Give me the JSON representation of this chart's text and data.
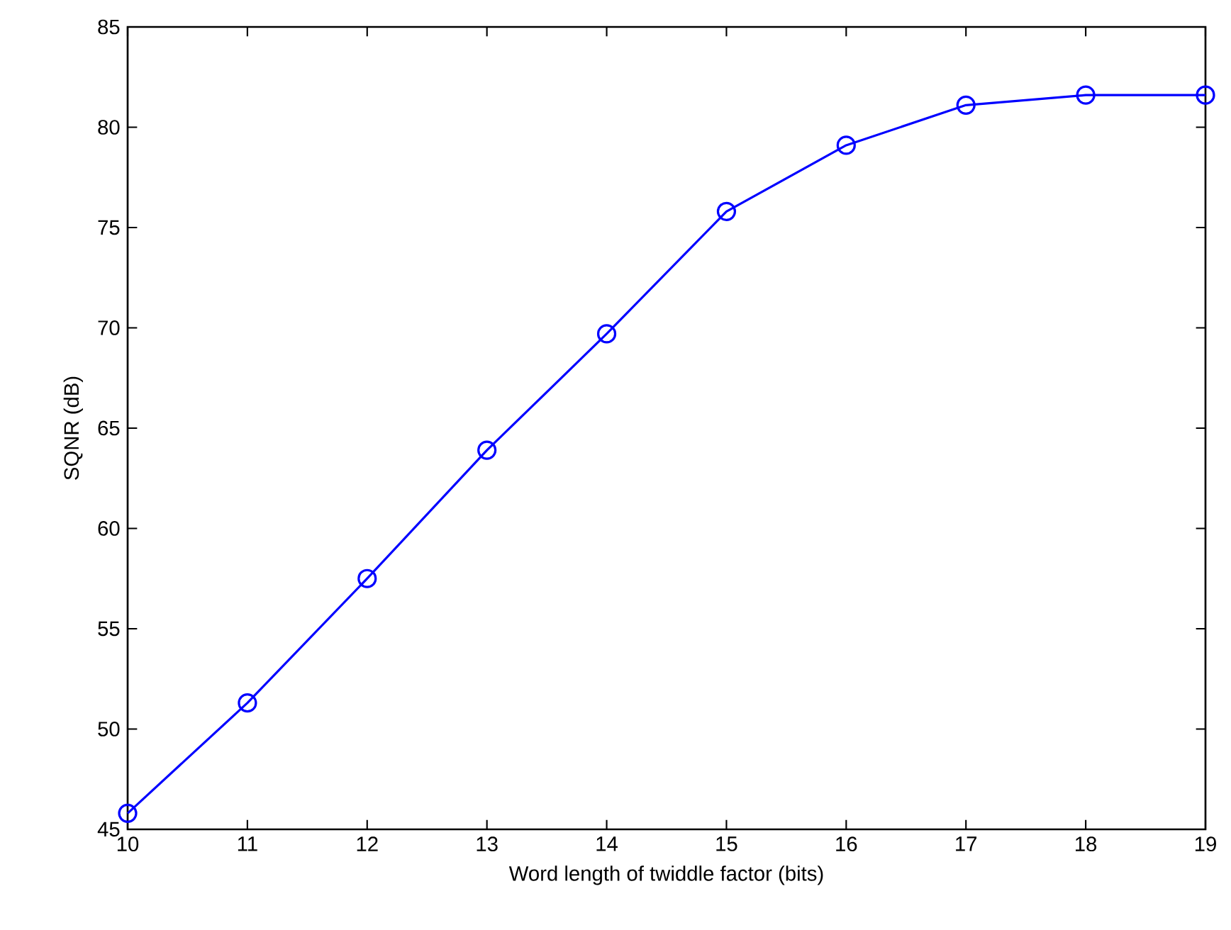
{
  "chart_data": {
    "type": "line",
    "xlabel": "Word length of twiddle factor (bits)",
    "ylabel": "SQNR (dB)",
    "x": [
      10,
      11,
      12,
      13,
      14,
      15,
      16,
      17,
      18,
      19
    ],
    "series": [
      {
        "color": "#0000ff",
        "values": [
          45.8,
          51.3,
          57.5,
          63.9,
          69.7,
          75.8,
          79.1,
          81.1,
          81.6,
          81.6
        ]
      }
    ],
    "xlim": [
      10,
      19
    ],
    "xticks": [
      10,
      11,
      12,
      13,
      14,
      15,
      16,
      17,
      18,
      19
    ],
    "ylim": [
      45,
      85
    ],
    "yticks": [
      45,
      50,
      55,
      60,
      65,
      70,
      75,
      80,
      85
    ],
    "grid": false,
    "marker": "circle",
    "line_style": "solid"
  }
}
